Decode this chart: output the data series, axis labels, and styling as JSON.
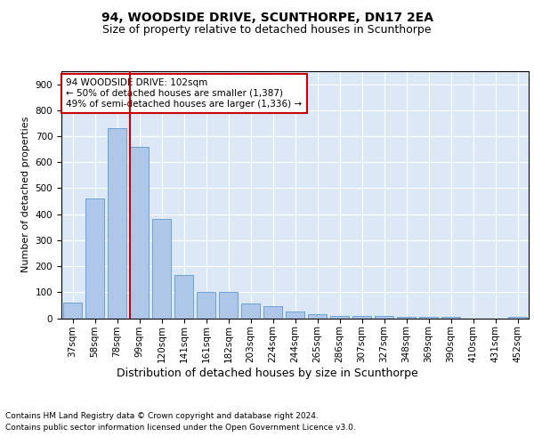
{
  "title": "94, WOODSIDE DRIVE, SCUNTHORPE, DN17 2EA",
  "subtitle": "Size of property relative to detached houses in Scunthorpe",
  "xlabel": "Distribution of detached houses by size in Scunthorpe",
  "ylabel": "Number of detached properties",
  "categories": [
    "37sqm",
    "58sqm",
    "78sqm",
    "99sqm",
    "120sqm",
    "141sqm",
    "161sqm",
    "182sqm",
    "203sqm",
    "224sqm",
    "244sqm",
    "265sqm",
    "286sqm",
    "307sqm",
    "327sqm",
    "348sqm",
    "369sqm",
    "390sqm",
    "410sqm",
    "431sqm",
    "452sqm"
  ],
  "values": [
    60,
    460,
    730,
    660,
    380,
    165,
    100,
    100,
    55,
    45,
    25,
    15,
    10,
    10,
    10,
    5,
    5,
    5,
    0,
    0,
    5
  ],
  "bar_color": "#aec6e8",
  "bar_edge_color": "#5b9bd5",
  "annotation_line1": "94 WOODSIDE DRIVE: 102sqm",
  "annotation_line2": "← 50% of detached houses are smaller (1,387)",
  "annotation_line3": "49% of semi-detached houses are larger (1,336) →",
  "annotation_box_color": "#ffffff",
  "annotation_box_edge": "#cc0000",
  "red_line_index": 3,
  "ylim": [
    0,
    950
  ],
  "yticks": [
    0,
    100,
    200,
    300,
    400,
    500,
    600,
    700,
    800,
    900
  ],
  "footer_line1": "Contains HM Land Registry data © Crown copyright and database right 2024.",
  "footer_line2": "Contains public sector information licensed under the Open Government Licence v3.0.",
  "bg_color": "#ffffff",
  "plot_bg_color": "#dce8f5",
  "grid_color": "#ffffff",
  "title_fontsize": 10,
  "subtitle_fontsize": 9,
  "ylabel_fontsize": 8,
  "xlabel_fontsize": 9,
  "tick_fontsize": 7.5,
  "annotation_fontsize": 7.5,
  "footer_fontsize": 6.5
}
